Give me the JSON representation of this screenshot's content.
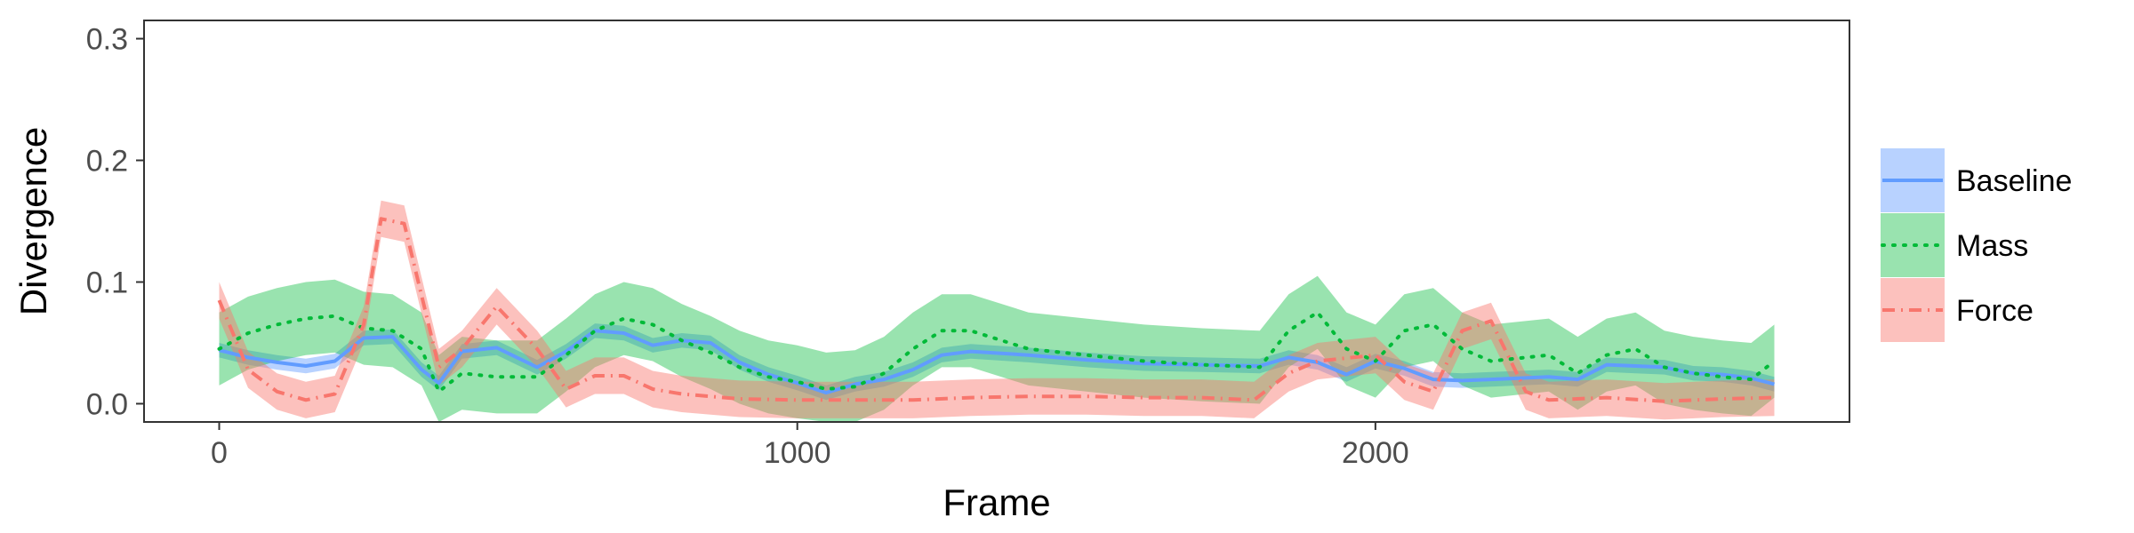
{
  "chart_data": {
    "type": "line",
    "xlabel": "Frame",
    "ylabel": "Divergence",
    "xlim": [
      -130,
      2820
    ],
    "ylim": [
      -0.015,
      0.315
    ],
    "xticks": [
      0,
      1000,
      2000
    ],
    "xtick_labels": [
      "0",
      "1000",
      "2000"
    ],
    "yticks": [
      0.0,
      0.1,
      0.2,
      0.3
    ],
    "ytick_labels": [
      "0.0",
      "0.1",
      "0.2",
      "0.3"
    ],
    "grid": false,
    "legend_position": "right",
    "series": [
      {
        "name": "Baseline",
        "color": "#619CFF",
        "dash": "solid",
        "points": [
          [
            0,
            0.044
          ],
          [
            50,
            0.038
          ],
          [
            100,
            0.034
          ],
          [
            150,
            0.031
          ],
          [
            200,
            0.035
          ],
          [
            250,
            0.054
          ],
          [
            300,
            0.055
          ],
          [
            350,
            0.028
          ],
          [
            380,
            0.017
          ],
          [
            420,
            0.043
          ],
          [
            480,
            0.046
          ],
          [
            550,
            0.03
          ],
          [
            600,
            0.043
          ],
          [
            650,
            0.06
          ],
          [
            700,
            0.058
          ],
          [
            750,
            0.048
          ],
          [
            800,
            0.052
          ],
          [
            850,
            0.05
          ],
          [
            900,
            0.034
          ],
          [
            950,
            0.024
          ],
          [
            1000,
            0.017
          ],
          [
            1050,
            0.009
          ],
          [
            1100,
            0.016
          ],
          [
            1150,
            0.02
          ],
          [
            1200,
            0.028
          ],
          [
            1250,
            0.04
          ],
          [
            1300,
            0.043
          ],
          [
            1400,
            0.04
          ],
          [
            1500,
            0.036
          ],
          [
            1600,
            0.033
          ],
          [
            1700,
            0.032
          ],
          [
            1800,
            0.031
          ],
          [
            1850,
            0.038
          ],
          [
            1900,
            0.034
          ],
          [
            1950,
            0.024
          ],
          [
            2000,
            0.035
          ],
          [
            2050,
            0.029
          ],
          [
            2100,
            0.02
          ],
          [
            2150,
            0.019
          ],
          [
            2200,
            0.02
          ],
          [
            2300,
            0.022
          ],
          [
            2350,
            0.02
          ],
          [
            2400,
            0.032
          ],
          [
            2450,
            0.031
          ],
          [
            2500,
            0.03
          ],
          [
            2550,
            0.025
          ],
          [
            2600,
            0.024
          ],
          [
            2650,
            0.021
          ],
          [
            2690,
            0.016
          ]
        ]
      },
      {
        "name": "Mass",
        "color": "#00BA38",
        "dash": "dotted",
        "points": [
          [
            0,
            0.045
          ],
          [
            50,
            0.058
          ],
          [
            100,
            0.065
          ],
          [
            150,
            0.07
          ],
          [
            200,
            0.072
          ],
          [
            250,
            0.062
          ],
          [
            300,
            0.06
          ],
          [
            350,
            0.045
          ],
          [
            380,
            0.01
          ],
          [
            420,
            0.025
          ],
          [
            480,
            0.022
          ],
          [
            550,
            0.022
          ],
          [
            600,
            0.04
          ],
          [
            650,
            0.06
          ],
          [
            700,
            0.07
          ],
          [
            750,
            0.065
          ],
          [
            800,
            0.052
          ],
          [
            850,
            0.042
          ],
          [
            900,
            0.03
          ],
          [
            950,
            0.022
          ],
          [
            1000,
            0.018
          ],
          [
            1050,
            0.012
          ],
          [
            1100,
            0.014
          ],
          [
            1150,
            0.025
          ],
          [
            1200,
            0.045
          ],
          [
            1250,
            0.06
          ],
          [
            1300,
            0.06
          ],
          [
            1400,
            0.045
          ],
          [
            1500,
            0.04
          ],
          [
            1600,
            0.035
          ],
          [
            1700,
            0.032
          ],
          [
            1800,
            0.03
          ],
          [
            1850,
            0.06
          ],
          [
            1900,
            0.075
          ],
          [
            1950,
            0.045
          ],
          [
            2000,
            0.035
          ],
          [
            2050,
            0.06
          ],
          [
            2100,
            0.065
          ],
          [
            2150,
            0.045
          ],
          [
            2200,
            0.035
          ],
          [
            2300,
            0.04
          ],
          [
            2350,
            0.025
          ],
          [
            2400,
            0.04
          ],
          [
            2450,
            0.045
          ],
          [
            2500,
            0.03
          ],
          [
            2550,
            0.025
          ],
          [
            2600,
            0.022
          ],
          [
            2650,
            0.02
          ],
          [
            2690,
            0.035
          ]
        ]
      },
      {
        "name": "Force",
        "color": "#F8766D",
        "dash": "dashdot",
        "points": [
          [
            0,
            0.085
          ],
          [
            50,
            0.028
          ],
          [
            100,
            0.01
          ],
          [
            150,
            0.003
          ],
          [
            200,
            0.008
          ],
          [
            250,
            0.065
          ],
          [
            280,
            0.152
          ],
          [
            320,
            0.148
          ],
          [
            380,
            0.03
          ],
          [
            420,
            0.045
          ],
          [
            480,
            0.08
          ],
          [
            550,
            0.045
          ],
          [
            600,
            0.012
          ],
          [
            650,
            0.023
          ],
          [
            700,
            0.023
          ],
          [
            750,
            0.012
          ],
          [
            800,
            0.008
          ],
          [
            900,
            0.004
          ],
          [
            1000,
            0.003
          ],
          [
            1100,
            0.003
          ],
          [
            1200,
            0.003
          ],
          [
            1300,
            0.005
          ],
          [
            1400,
            0.006
          ],
          [
            1500,
            0.006
          ],
          [
            1600,
            0.005
          ],
          [
            1700,
            0.005
          ],
          [
            1790,
            0.003
          ],
          [
            1850,
            0.025
          ],
          [
            1900,
            0.035
          ],
          [
            2000,
            0.04
          ],
          [
            2050,
            0.018
          ],
          [
            2100,
            0.01
          ],
          [
            2150,
            0.06
          ],
          [
            2200,
            0.068
          ],
          [
            2260,
            0.01
          ],
          [
            2300,
            0.003
          ],
          [
            2400,
            0.005
          ],
          [
            2500,
            0.002
          ],
          [
            2600,
            0.004
          ],
          [
            2690,
            0.005
          ]
        ]
      }
    ],
    "ribbons": [
      {
        "series": "Baseline",
        "halfwidth": 0.006,
        "opacity": 0.45
      },
      {
        "series": "Mass",
        "halfwidth": 0.03,
        "opacity": 0.4
      },
      {
        "series": "Force",
        "halfwidth": 0.015,
        "opacity": 0.45
      }
    ],
    "legend_entries": [
      "Baseline",
      "Mass",
      "Force"
    ]
  }
}
